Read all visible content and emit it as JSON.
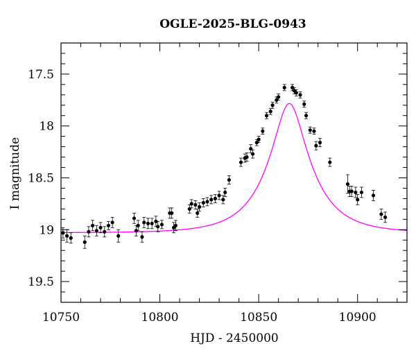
{
  "chart_data": {
    "type": "scatter",
    "title": "OGLE-2025-BLG-0943",
    "xlabel": "HJD - 2450000",
    "ylabel": "I magnitude",
    "xlim": [
      10750,
      10925
    ],
    "ylim": [
      19.7,
      17.2
    ],
    "y_inverted": true,
    "grid": false,
    "x_ticks": [
      10750,
      10800,
      10850,
      10900
    ],
    "x_tick_labels": [
      "10750",
      "10800",
      "10850",
      "10900"
    ],
    "y_ticks": [
      17.5,
      18,
      18.5,
      19,
      19.5
    ],
    "y_tick_labels": [
      "17.5",
      "18",
      "18.5",
      "19",
      "19.5"
    ],
    "model_color": "#ff00ff",
    "marker_color": "#000000",
    "model": {
      "t0": 10865.5,
      "u0": 0.33,
      "tE": 21.5,
      "base_mag": 19.03
    },
    "series": [
      {
        "points": [
          {
            "x": 10751,
            "y": 19.03,
            "err": 0.05
          },
          {
            "x": 10753,
            "y": 19.06,
            "err": 0.06
          },
          {
            "x": 10755,
            "y": 19.08,
            "err": 0.05
          },
          {
            "x": 10762,
            "y": 19.12,
            "err": 0.06
          },
          {
            "x": 10764,
            "y": 19.02,
            "err": 0.05
          },
          {
            "x": 10766,
            "y": 18.96,
            "err": 0.05
          },
          {
            "x": 10768,
            "y": 19.01,
            "err": 0.05
          },
          {
            "x": 10770,
            "y": 18.98,
            "err": 0.05
          },
          {
            "x": 10772,
            "y": 19.02,
            "err": 0.05
          },
          {
            "x": 10774,
            "y": 18.96,
            "err": 0.04
          },
          {
            "x": 10776,
            "y": 18.93,
            "err": 0.05
          },
          {
            "x": 10779,
            "y": 19.06,
            "err": 0.06
          },
          {
            "x": 10787,
            "y": 18.89,
            "err": 0.05
          },
          {
            "x": 10788,
            "y": 19.01,
            "err": 0.05
          },
          {
            "x": 10789,
            "y": 18.96,
            "err": 0.05
          },
          {
            "x": 10791,
            "y": 19.07,
            "err": 0.05
          },
          {
            "x": 10792,
            "y": 18.93,
            "err": 0.05
          },
          {
            "x": 10794,
            "y": 18.94,
            "err": 0.05
          },
          {
            "x": 10796,
            "y": 18.94,
            "err": 0.05
          },
          {
            "x": 10798,
            "y": 18.92,
            "err": 0.05
          },
          {
            "x": 10799,
            "y": 18.97,
            "err": 0.05
          },
          {
            "x": 10801,
            "y": 18.95,
            "err": 0.04
          },
          {
            "x": 10805,
            "y": 18.84,
            "err": 0.05
          },
          {
            "x": 10806,
            "y": 18.84,
            "err": 0.05
          },
          {
            "x": 10807,
            "y": 18.98,
            "err": 0.05
          },
          {
            "x": 10808,
            "y": 18.96,
            "err": 0.05
          },
          {
            "x": 10815,
            "y": 18.8,
            "err": 0.04
          },
          {
            "x": 10816,
            "y": 18.75,
            "err": 0.04
          },
          {
            "x": 10818,
            "y": 18.76,
            "err": 0.04
          },
          {
            "x": 10819,
            "y": 18.84,
            "err": 0.04
          },
          {
            "x": 10820,
            "y": 18.78,
            "err": 0.04
          },
          {
            "x": 10822,
            "y": 18.74,
            "err": 0.04
          },
          {
            "x": 10824,
            "y": 18.73,
            "err": 0.04
          },
          {
            "x": 10826,
            "y": 18.71,
            "err": 0.04
          },
          {
            "x": 10828,
            "y": 18.7,
            "err": 0.04
          },
          {
            "x": 10830,
            "y": 18.67,
            "err": 0.04
          },
          {
            "x": 10832,
            "y": 18.71,
            "err": 0.04
          },
          {
            "x": 10833,
            "y": 18.64,
            "err": 0.04
          },
          {
            "x": 10835,
            "y": 18.52,
            "err": 0.04
          },
          {
            "x": 10841,
            "y": 18.35,
            "err": 0.04
          },
          {
            "x": 10843,
            "y": 18.31,
            "err": 0.04
          },
          {
            "x": 10844,
            "y": 18.3,
            "err": 0.04
          },
          {
            "x": 10846,
            "y": 18.22,
            "err": 0.04
          },
          {
            "x": 10847,
            "y": 18.27,
            "err": 0.04
          },
          {
            "x": 10849,
            "y": 18.16,
            "err": 0.03
          },
          {
            "x": 10850,
            "y": 18.13,
            "err": 0.03
          },
          {
            "x": 10852,
            "y": 18.05,
            "err": 0.03
          },
          {
            "x": 10854,
            "y": 17.9,
            "err": 0.03
          },
          {
            "x": 10856,
            "y": 17.86,
            "err": 0.03
          },
          {
            "x": 10857,
            "y": 17.8,
            "err": 0.03
          },
          {
            "x": 10859,
            "y": 17.75,
            "err": 0.03
          },
          {
            "x": 10860,
            "y": 17.72,
            "err": 0.03
          },
          {
            "x": 10863,
            "y": 17.63,
            "err": 0.03
          },
          {
            "x": 10867,
            "y": 17.63,
            "err": 0.03
          },
          {
            "x": 10868,
            "y": 17.66,
            "err": 0.03
          },
          {
            "x": 10869,
            "y": 17.68,
            "err": 0.03
          },
          {
            "x": 10871,
            "y": 17.7,
            "err": 0.03
          },
          {
            "x": 10873,
            "y": 17.79,
            "err": 0.03
          },
          {
            "x": 10874,
            "y": 17.9,
            "err": 0.03
          },
          {
            "x": 10876,
            "y": 18.04,
            "err": 0.03
          },
          {
            "x": 10878,
            "y": 18.05,
            "err": 0.03
          },
          {
            "x": 10879,
            "y": 18.19,
            "err": 0.04
          },
          {
            "x": 10881,
            "y": 18.16,
            "err": 0.04
          },
          {
            "x": 10886,
            "y": 18.35,
            "err": 0.04
          },
          {
            "x": 10895,
            "y": 18.56,
            "err": 0.09
          },
          {
            "x": 10896,
            "y": 18.63,
            "err": 0.05
          },
          {
            "x": 10897,
            "y": 18.63,
            "err": 0.05
          },
          {
            "x": 10899,
            "y": 18.64,
            "err": 0.05
          },
          {
            "x": 10900,
            "y": 18.71,
            "err": 0.05
          },
          {
            "x": 10902,
            "y": 18.64,
            "err": 0.05
          },
          {
            "x": 10908,
            "y": 18.67,
            "err": 0.05
          },
          {
            "x": 10912,
            "y": 18.85,
            "err": 0.05
          },
          {
            "x": 10914,
            "y": 18.88,
            "err": 0.05
          }
        ]
      }
    ]
  }
}
